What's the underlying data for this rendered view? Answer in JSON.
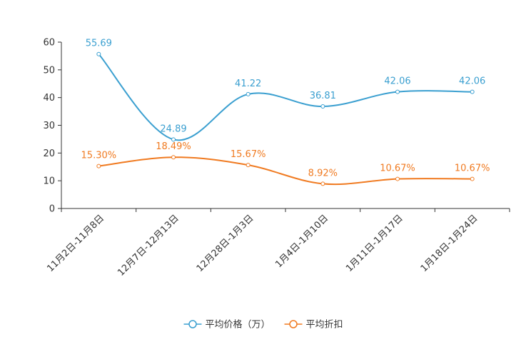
{
  "chart_data": {
    "type": "line",
    "title": "",
    "xlabel": "",
    "ylabel": "",
    "categories": [
      "11月2日-11月8日",
      "12月7日-12月13日",
      "12月28日-1月3日",
      "1月4日-1月10日",
      "1月11日-1月17日",
      "1月18日-1月24日"
    ],
    "ylim": [
      0,
      60
    ],
    "yticks": [
      0,
      10,
      20,
      30,
      40,
      50,
      60
    ],
    "legend_position": "bottom-center",
    "series": [
      {
        "name": "平均价格（万）",
        "color": "#3a9fd0",
        "values": [
          55.69,
          24.89,
          41.22,
          36.81,
          42.06,
          42.06
        ],
        "labels": [
          "55.69",
          "24.89",
          "41.22",
          "36.81",
          "42.06",
          "42.06"
        ]
      },
      {
        "name": "平均折扣",
        "color": "#f07a20",
        "values": [
          15.3,
          18.49,
          15.67,
          8.92,
          10.67,
          10.67
        ],
        "labels": [
          "15.30%",
          "18.49%",
          "15.67%",
          "8.92%",
          "10.67%",
          "10.67%"
        ]
      }
    ]
  }
}
